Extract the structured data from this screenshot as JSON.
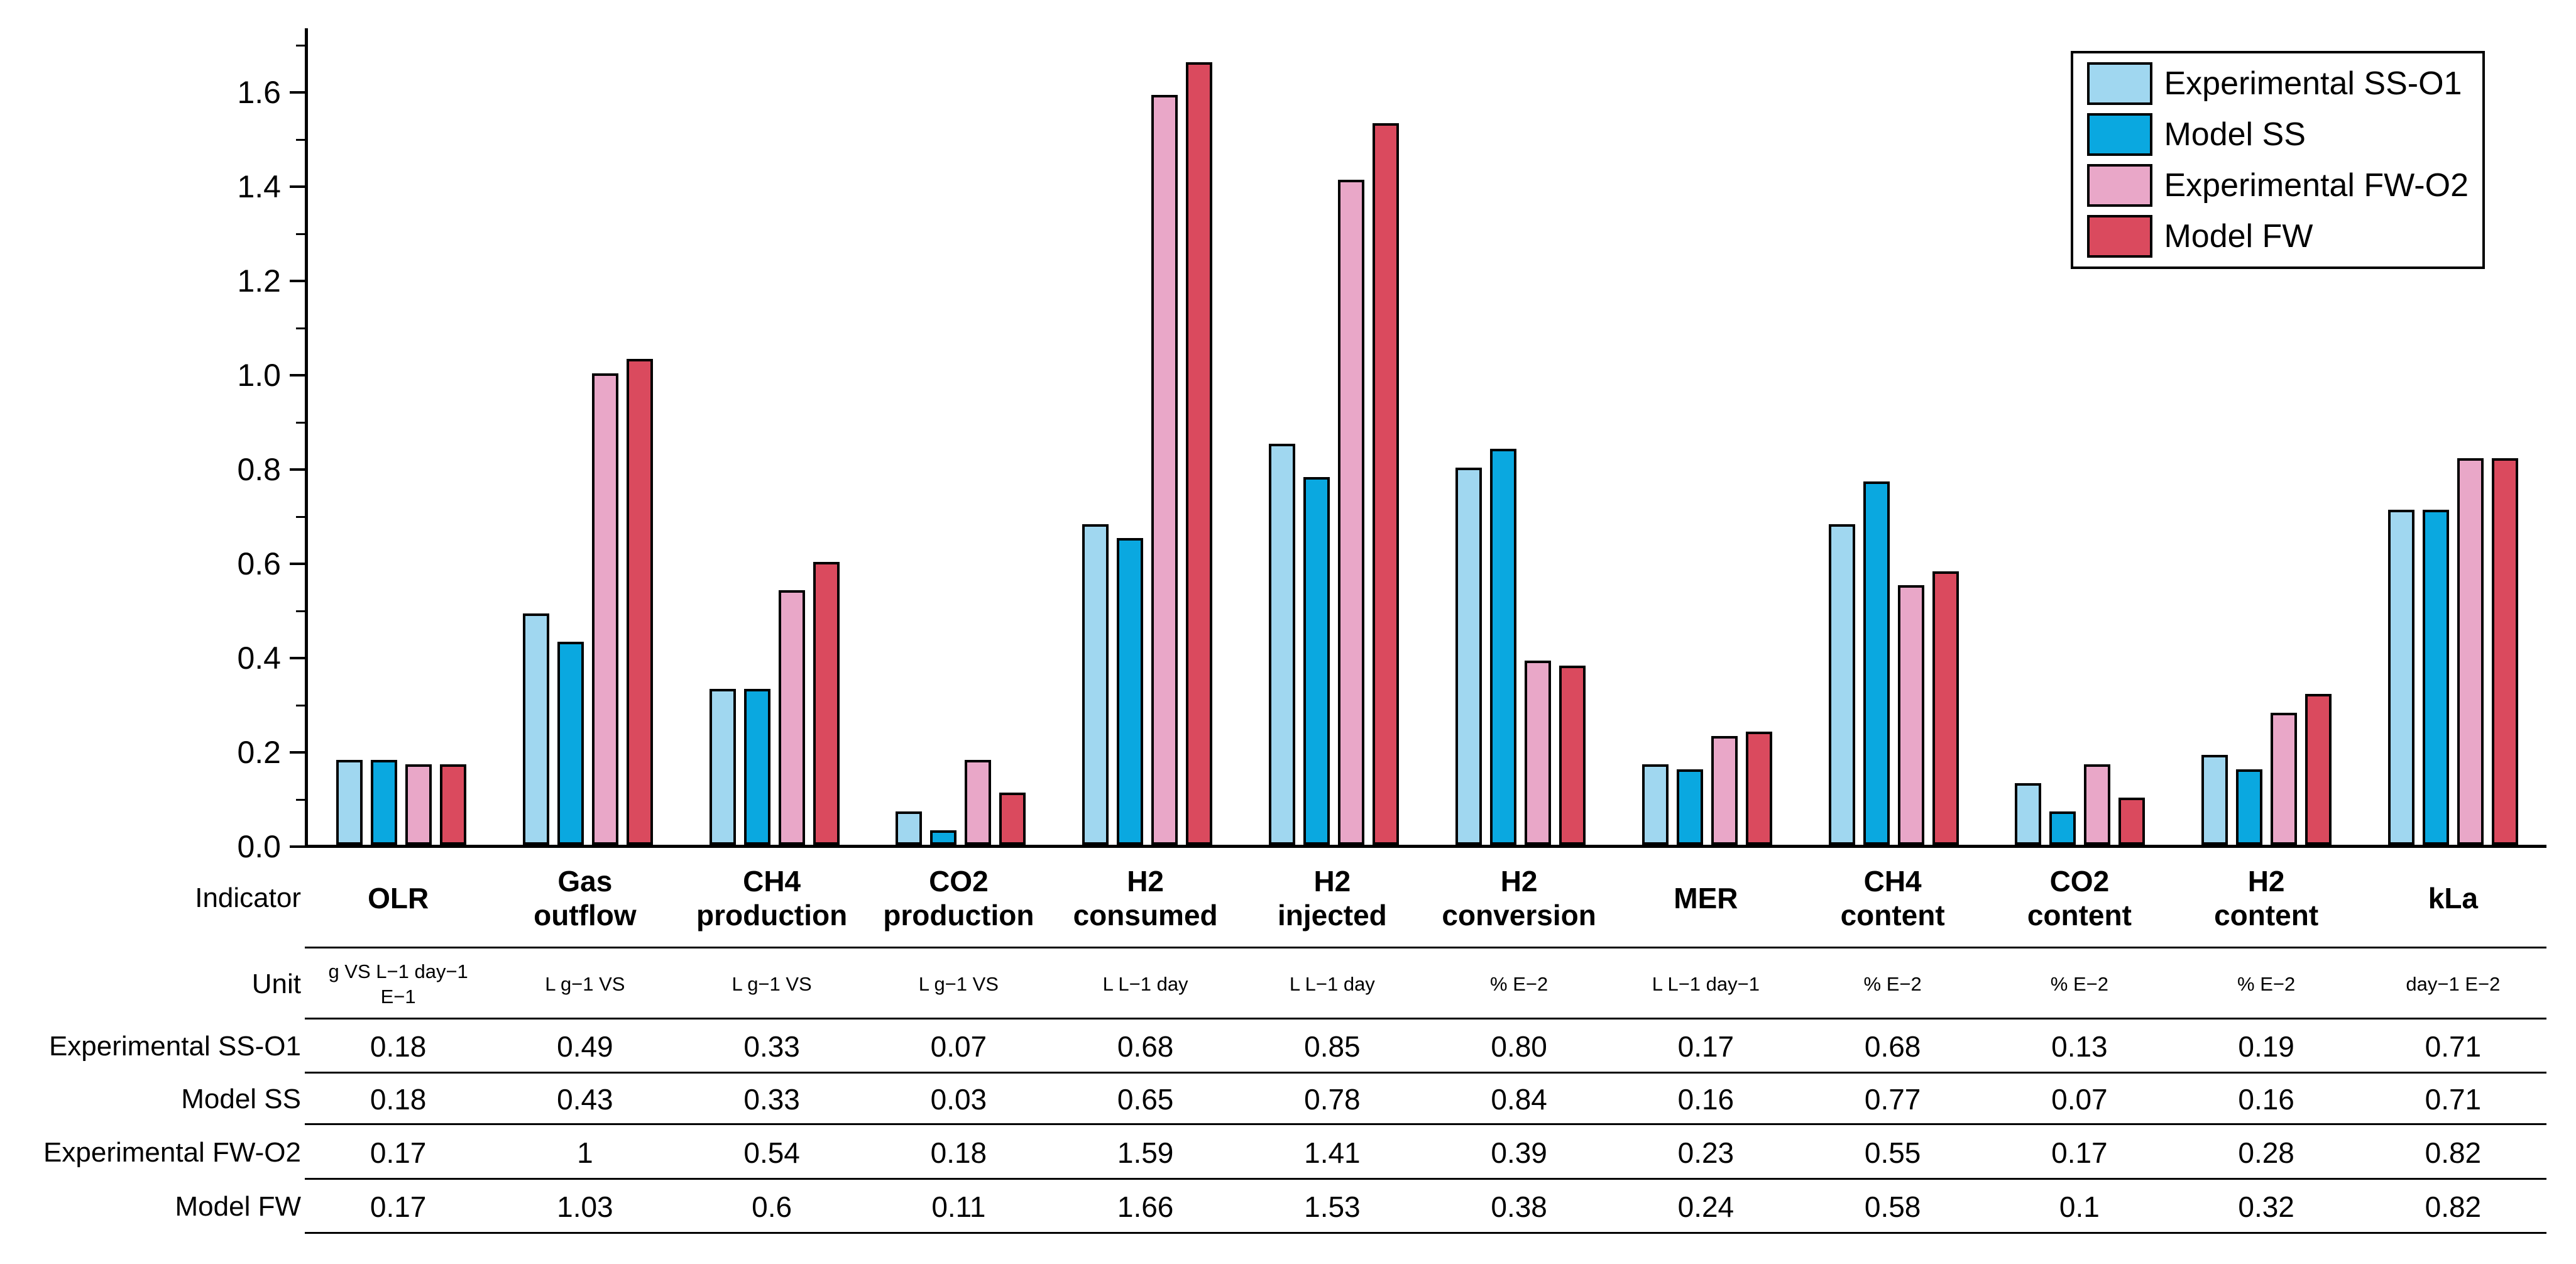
{
  "chart_data": {
    "type": "bar",
    "title": "",
    "xlabel": "",
    "ylabel": "",
    "categories": [
      "OLR",
      "Gas\noutflow",
      "CH4\nproduction",
      "CO2\nproduction",
      "H2\nconsumed",
      "H2\ninjected",
      "H2\nconversion",
      "MER",
      "CH4\ncontent",
      "CO2\ncontent",
      "H2\ncontent",
      "kLa"
    ],
    "units": [
      "g VS L−1 day−1\nE−1",
      "L g−1 VS",
      "L g−1 VS",
      "L g−1 VS",
      "L L−1 day",
      "L L−1 day",
      "% E−2",
      "L L−1 day−1",
      "% E−2",
      "% E−2",
      "% E−2",
      "day−1 E−2"
    ],
    "series": [
      {
        "name": "Experimental SS-O1",
        "color": "#A0D7F0",
        "values": [
          0.18,
          0.49,
          0.33,
          0.07,
          0.68,
          0.85,
          0.8,
          0.17,
          0.68,
          0.13,
          0.19,
          0.71
        ]
      },
      {
        "name": "Model SS",
        "color": "#0AA8E0",
        "values": [
          0.18,
          0.43,
          0.33,
          0.03,
          0.65,
          0.78,
          0.84,
          0.16,
          0.77,
          0.07,
          0.16,
          0.71
        ]
      },
      {
        "name": "Experimental FW-O2",
        "color": "#E9A7C8",
        "values": [
          0.17,
          1.0,
          0.54,
          0.18,
          1.59,
          1.41,
          0.39,
          0.23,
          0.55,
          0.17,
          0.28,
          0.82
        ]
      },
      {
        "name": "Model FW",
        "color": "#DA4A5E",
        "values": [
          0.17,
          1.03,
          0.6,
          0.11,
          1.66,
          1.53,
          0.38,
          0.24,
          0.58,
          0.1,
          0.32,
          0.82
        ]
      }
    ],
    "ylim": [
      0,
      1.736
    ],
    "ytick_labels": [
      "0.0",
      "0.2",
      "0.4",
      "0.6",
      "0.8",
      "1.0",
      "1.2",
      "1.4",
      "1.6"
    ],
    "major_tick_step": 0.2,
    "minor_tick_step": 0.1,
    "grid": false,
    "legend_position": "top-right",
    "bar_outline_color": "#000000"
  },
  "table": {
    "indicator_label": "Indicator",
    "unit_label": "Unit",
    "rows": [
      {
        "label": "Experimental SS-O1",
        "values": [
          "0.18",
          "0.49",
          "0.33",
          "0.07",
          "0.68",
          "0.85",
          "0.80",
          "0.17",
          "0.68",
          "0.13",
          "0.19",
          "0.71"
        ]
      },
      {
        "label": "Model SS",
        "values": [
          "0.18",
          "0.43",
          "0.33",
          "0.03",
          "0.65",
          "0.78",
          "0.84",
          "0.16",
          "0.77",
          "0.07",
          "0.16",
          "0.71"
        ]
      },
      {
        "label": "Experimental FW-O2",
        "values": [
          "0.17",
          "1",
          "0.54",
          "0.18",
          "1.59",
          "1.41",
          "0.39",
          "0.23",
          "0.55",
          "0.17",
          "0.28",
          "0.82"
        ]
      },
      {
        "label": "Model FW",
        "values": [
          "0.17",
          "1.03",
          "0.6",
          "0.11",
          "1.66",
          "1.53",
          "0.38",
          "0.24",
          "0.58",
          "0.1",
          "0.32",
          "0.82"
        ]
      }
    ]
  }
}
